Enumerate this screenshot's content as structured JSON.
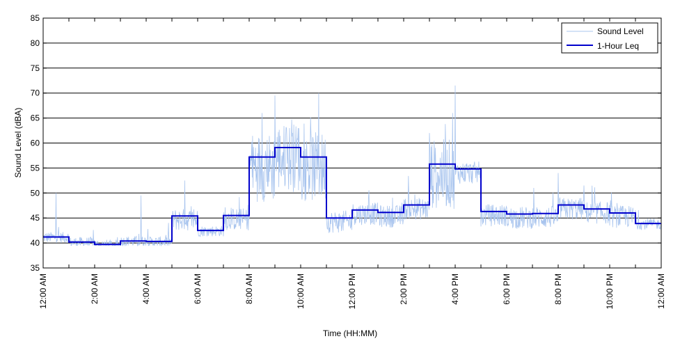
{
  "chart_data": {
    "type": "line",
    "xlabel": "Time (HH:MM)",
    "ylabel": "Sound Level (dBA)",
    "ylim": [
      35,
      85
    ],
    "yticks": [
      35,
      40,
      45,
      50,
      55,
      60,
      65,
      70,
      75,
      80,
      85
    ],
    "xlim_hours": [
      0,
      24
    ],
    "x_tick_hours": [
      0,
      2,
      4,
      6,
      8,
      10,
      12,
      14,
      16,
      18,
      20,
      22,
      24
    ],
    "x_tick_labels": [
      "12:00 AM",
      "2:00 AM",
      "4:00 AM",
      "6:00 AM",
      "8:00 AM",
      "10:00 AM",
      "12:00 PM",
      "2:00 PM",
      "4:00 PM",
      "6:00 PM",
      "8:00 PM",
      "10:00 PM",
      "12:00 AM"
    ],
    "grid": "horizontal",
    "legend_position": "top-right",
    "series": [
      {
        "name": "Sound Level",
        "color": "#a8c4ee",
        "style": "thin-line",
        "peaks": [
          {
            "hour": 0.5,
            "value": 50
          },
          {
            "hour": 3.8,
            "value": 49.5
          },
          {
            "hour": 5.5,
            "value": 52.5
          },
          {
            "hour": 8.5,
            "value": 66
          },
          {
            "hour": 9.0,
            "value": 69.5
          },
          {
            "hour": 9.9,
            "value": 63
          },
          {
            "hour": 10.7,
            "value": 70
          },
          {
            "hour": 15.0,
            "value": 62
          },
          {
            "hour": 15.9,
            "value": 66
          },
          {
            "hour": 16.0,
            "value": 71.5
          },
          {
            "hour": 20.0,
            "value": 54
          },
          {
            "hour": 21.0,
            "value": 51.5
          }
        ]
      },
      {
        "name": "1-Hour Leq",
        "color": "#0000cc",
        "style": "step",
        "hours": [
          0,
          1,
          2,
          3,
          4,
          5,
          6,
          7,
          8,
          9,
          10,
          11,
          12,
          13,
          14,
          15,
          16,
          17,
          18,
          19,
          20,
          21,
          22,
          23
        ],
        "values": [
          41.2,
          40.2,
          39.7,
          40.4,
          40.3,
          45.4,
          42.5,
          45.5,
          57.2,
          59.1,
          57.2,
          45.0,
          46.6,
          46.1,
          47.6,
          55.8,
          54.8,
          46.3,
          45.8,
          45.9,
          47.6,
          46.8,
          46.0,
          43.9
        ]
      }
    ]
  }
}
